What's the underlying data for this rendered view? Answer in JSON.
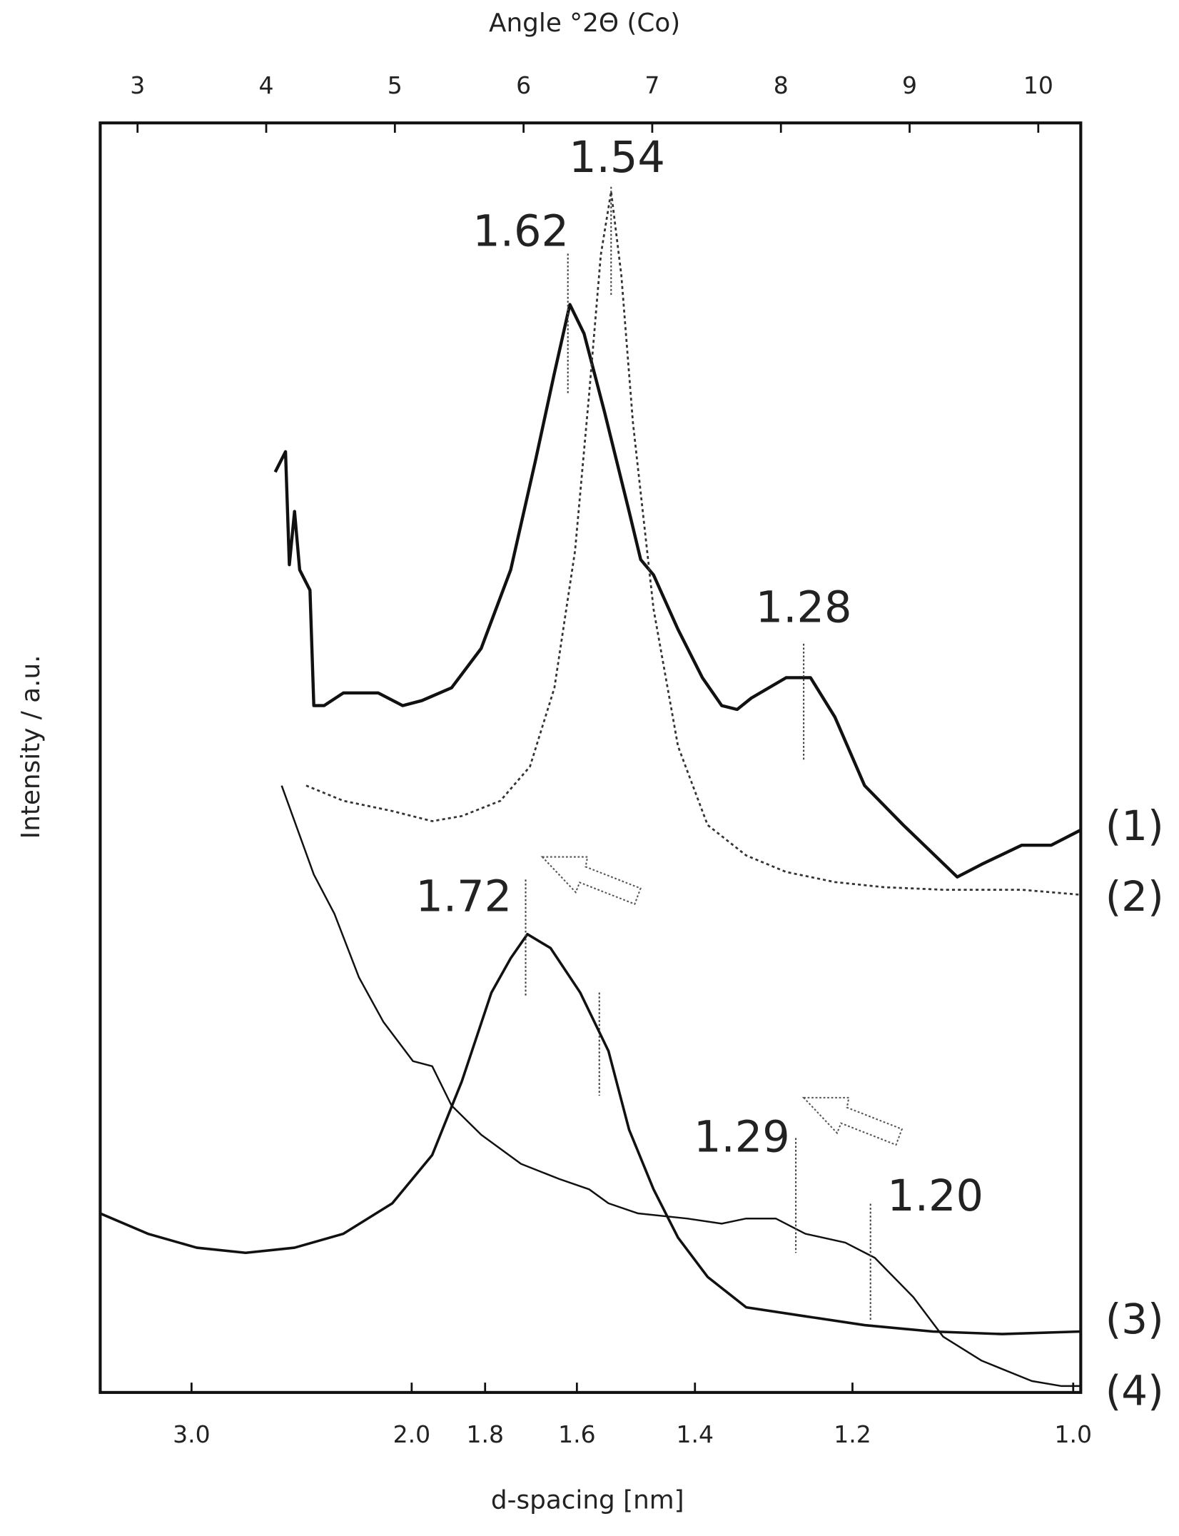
{
  "chart_data": {
    "type": "line",
    "x_label": "Angle °2Θ (Co)",
    "x2_label": "d-spacing [nm]",
    "y_label": "Intensity / a.u.",
    "xlim": [
      2.71,
      10.33
    ],
    "xticks": [
      3,
      4,
      5,
      6,
      7,
      8,
      9,
      10
    ],
    "x2ticks": [
      {
        "value": 3.0,
        "label": "3.0"
      },
      {
        "value": 2.0,
        "label": "2.0"
      },
      1.8,
      1.6,
      1.4,
      1.2,
      {
        "value": 1.0,
        "label": "1.0"
      }
    ],
    "ylim": [
      0,
      100
    ],
    "annotations": [
      "1.54",
      "1.62",
      "1.28",
      "1.72",
      "1.29",
      "1.20"
    ],
    "series": [
      {
        "name": "(1)",
        "color": "#111111",
        "style": "solid",
        "x": [
          4.07,
          4.15,
          4.18,
          4.22,
          4.26,
          4.34,
          4.37,
          4.45,
          4.6,
          4.87,
          5.06,
          5.21,
          5.44,
          5.67,
          5.9,
          6.09,
          6.24,
          6.36,
          6.47,
          6.63,
          6.82,
          6.91,
          7.01,
          7.2,
          7.39,
          7.54,
          7.66,
          7.77,
          8.04,
          8.23,
          8.42,
          8.65,
          8.95,
          9.37,
          9.56,
          9.87,
          10.1,
          10.33
        ],
        "values": [
          72.5,
          74.1,
          65.2,
          69.4,
          64.8,
          63.2,
          54.1,
          54.1,
          55.1,
          55.1,
          54.1,
          54.5,
          55.5,
          58.6,
          64.8,
          73.3,
          80.3,
          85.7,
          83.4,
          77.2,
          69.4,
          65.6,
          64.4,
          60.1,
          56.3,
          54.1,
          53.8,
          54.7,
          56.3,
          56.3,
          53.2,
          47.8,
          44.7,
          40.6,
          41.6,
          43.1,
          43.1,
          44.3
        ]
      },
      {
        "name": "(2)",
        "color": "#333333",
        "style": "dotted",
        "x": [
          4.31,
          4.6,
          4.98,
          5.29,
          5.52,
          5.82,
          6.05,
          6.24,
          6.4,
          6.51,
          6.6,
          6.68,
          6.76,
          6.85,
          7.01,
          7.2,
          7.43,
          7.73,
          8.04,
          8.42,
          8.8,
          9.26,
          9.87,
          10.33
        ],
        "values": [
          47.8,
          46.6,
          45.8,
          45.0,
          45.4,
          46.6,
          49.3,
          55.5,
          66.3,
          78.7,
          89.6,
          94.6,
          88.0,
          76.4,
          61.7,
          50.9,
          44.7,
          42.3,
          41.0,
          40.2,
          39.8,
          39.6,
          39.6,
          39.2
        ]
      },
      {
        "name": "(3)",
        "color": "#111111",
        "style": "noisy",
        "x": [
          2.71,
          3.08,
          3.46,
          3.84,
          4.22,
          4.6,
          4.98,
          5.29,
          5.52,
          5.75,
          5.9,
          6.03,
          6.21,
          6.44,
          6.66,
          6.82,
          7.01,
          7.2,
          7.43,
          7.73,
          8.19,
          8.65,
          9.18,
          9.72,
          10.33
        ],
        "values": [
          14.1,
          12.5,
          11.4,
          11.0,
          11.4,
          12.5,
          14.9,
          18.7,
          24.5,
          31.5,
          34.2,
          36.1,
          35.0,
          31.5,
          26.9,
          20.7,
          16.0,
          12.2,
          9.1,
          6.7,
          6.0,
          5.3,
          4.8,
          4.6,
          4.8
        ]
      },
      {
        "name": "(4)",
        "color": "#111111",
        "style": "thin",
        "x": [
          4.12,
          4.37,
          4.53,
          4.72,
          4.91,
          5.14,
          5.29,
          5.44,
          5.67,
          5.98,
          6.28,
          6.51,
          6.66,
          6.89,
          7.27,
          7.54,
          7.73,
          7.96,
          8.19,
          8.5,
          8.73,
          9.03,
          9.26,
          9.56,
          9.95,
          10.18,
          10.33
        ],
        "values": [
          47.8,
          40.8,
          37.7,
          32.7,
          29.2,
          26.1,
          25.7,
          22.6,
          20.3,
          18.0,
          16.8,
          16.0,
          14.9,
          14.1,
          13.7,
          13.3,
          13.7,
          13.7,
          12.5,
          11.8,
          10.6,
          7.5,
          4.4,
          2.5,
          0.9,
          0.5,
          0.5
        ]
      }
    ]
  }
}
